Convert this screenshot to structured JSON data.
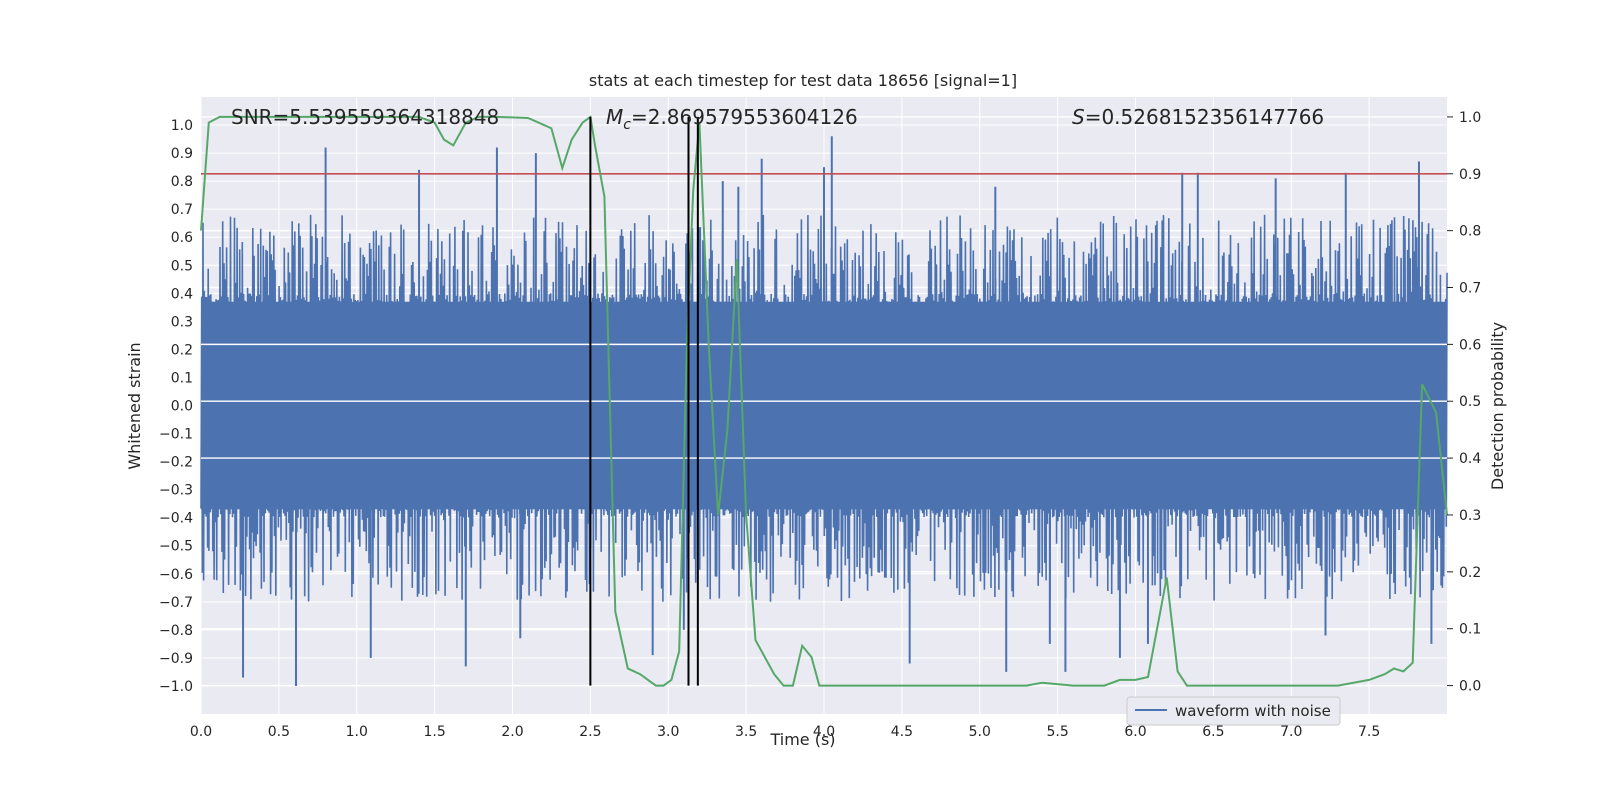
{
  "chart_data": {
    "type": "line",
    "title": "stats at each timestep for test data 18656 [signal=1]",
    "xlabel": "Time (s)",
    "ylabel_left": "Whitened strain",
    "ylabel_right": "Detection probability",
    "xlim": [
      0.0,
      8.0
    ],
    "ylim_left": [
      -1.1,
      1.1
    ],
    "ylim_right": [
      -0.05,
      1.035
    ],
    "x_ticks": [
      "0.0",
      "0.5",
      "1.0",
      "1.5",
      "2.0",
      "2.5",
      "3.0",
      "3.5",
      "4.0",
      "4.5",
      "5.0",
      "5.5",
      "6.0",
      "6.5",
      "7.0",
      "7.5"
    ],
    "y_left_ticks": [
      "1.0",
      "0.9",
      "0.8",
      "0.7",
      "0.6",
      "0.5",
      "0.4",
      "0.3",
      "0.2",
      "0.1",
      "0.0",
      "-0.1",
      "-0.2",
      "-0.3",
      "-0.4",
      "-0.5",
      "-0.6",
      "-0.7",
      "-0.8",
      "-0.9",
      "-1.0"
    ],
    "y_right_ticks": [
      "1.0",
      "0.9",
      "0.8",
      "0.7",
      "0.6",
      "0.5",
      "0.4",
      "0.3",
      "0.2",
      "0.1",
      "0.0"
    ],
    "grid": true,
    "legend_position": "lower-right",
    "legend_label": "waveform with noise",
    "annotations": {
      "snr": "SNR=5.539559364318848",
      "mc_symbol": "M",
      "mc_sub": "c",
      "mc_value": "=2.869579553604126",
      "s_symbol": "S",
      "s_value": "=0.5268152356147766"
    },
    "colors": {
      "waveform": "#4c72b0",
      "probability": "#55a868",
      "threshold": "#c44e52",
      "markers": "#000000",
      "plot_bg": "#eaeaf2",
      "grid": "#ffffff"
    },
    "threshold": 0.9,
    "vertical_markers": [
      2.5,
      3.13,
      3.19
    ],
    "waveform_envelope": {
      "typical_positive": 0.4,
      "typical_negative": -0.4,
      "peak_positive": [
        [
          0.8,
          0.92
        ],
        [
          1.4,
          0.84
        ],
        [
          1.9,
          0.92
        ],
        [
          2.15,
          0.9
        ],
        [
          3.35,
          0.8
        ],
        [
          3.45,
          0.78
        ],
        [
          3.6,
          0.88
        ],
        [
          4.05,
          0.96
        ],
        [
          4.0,
          0.85
        ],
        [
          5.1,
          0.78
        ],
        [
          6.3,
          0.83
        ],
        [
          6.4,
          0.83
        ],
        [
          6.9,
          0.81
        ],
        [
          7.35,
          0.83
        ],
        [
          7.82,
          0.87
        ]
      ],
      "peak_negative": [
        [
          0.27,
          -0.97
        ],
        [
          0.61,
          -1.0
        ],
        [
          1.09,
          -0.9
        ],
        [
          1.7,
          -0.93
        ],
        [
          2.05,
          -0.83
        ],
        [
          2.9,
          -0.89
        ],
        [
          3.1,
          -0.8
        ],
        [
          4.55,
          -0.92
        ],
        [
          5.17,
          -0.95
        ],
        [
          5.45,
          -0.85
        ],
        [
          5.55,
          -0.95
        ],
        [
          5.9,
          -0.9
        ],
        [
          6.08,
          -0.85
        ],
        [
          7.22,
          -0.82
        ],
        [
          7.9,
          -0.85
        ]
      ]
    },
    "series": [
      {
        "name": "",
        "type": "line",
        "x": [
          0.0,
          0.05,
          0.12,
          0.3,
          0.6,
          0.9,
          1.2,
          1.4,
          1.5,
          1.56,
          1.62,
          1.7,
          1.78,
          1.9,
          2.1,
          2.25,
          2.32,
          2.38,
          2.45,
          2.5,
          2.53,
          2.59,
          2.66,
          2.74,
          2.82,
          2.87,
          2.92,
          2.97,
          3.02,
          3.07,
          3.12,
          3.16,
          3.2,
          3.26,
          3.32,
          3.38,
          3.44,
          3.5,
          3.56,
          3.62,
          3.68,
          3.74,
          3.8,
          3.86,
          3.92,
          3.97,
          4.02,
          4.08,
          4.15,
          4.25,
          4.5,
          5.0,
          5.3,
          5.4,
          5.6,
          5.8,
          5.9,
          6.0,
          6.08,
          6.2,
          6.27,
          6.33,
          6.5,
          7.0,
          7.3,
          7.5,
          7.6,
          7.66,
          7.72,
          7.78,
          7.84,
          7.93,
          8.0
        ],
        "y": [
          0.8,
          0.99,
          1.0,
          1.0,
          1.0,
          1.0,
          1.0,
          1.0,
          0.99,
          0.96,
          0.95,
          0.99,
          1.0,
          1.0,
          0.998,
          0.98,
          0.91,
          0.96,
          0.99,
          1.0,
          0.95,
          0.86,
          0.13,
          0.03,
          0.02,
          0.01,
          0.0,
          0.0,
          0.01,
          0.06,
          0.6,
          0.87,
          0.99,
          0.6,
          0.3,
          0.45,
          0.75,
          0.3,
          0.08,
          0.05,
          0.02,
          0.0,
          0.0,
          0.07,
          0.05,
          0.0,
          0.0,
          0.0,
          0.0,
          0.0,
          0.0,
          0.0,
          0.0,
          0.005,
          0.0,
          0.0,
          0.01,
          0.01,
          0.015,
          0.19,
          0.025,
          0.0,
          0.0,
          0.0,
          0.0,
          0.01,
          0.02,
          0.03,
          0.025,
          0.04,
          0.53,
          0.48,
          0.3
        ]
      }
    ]
  }
}
